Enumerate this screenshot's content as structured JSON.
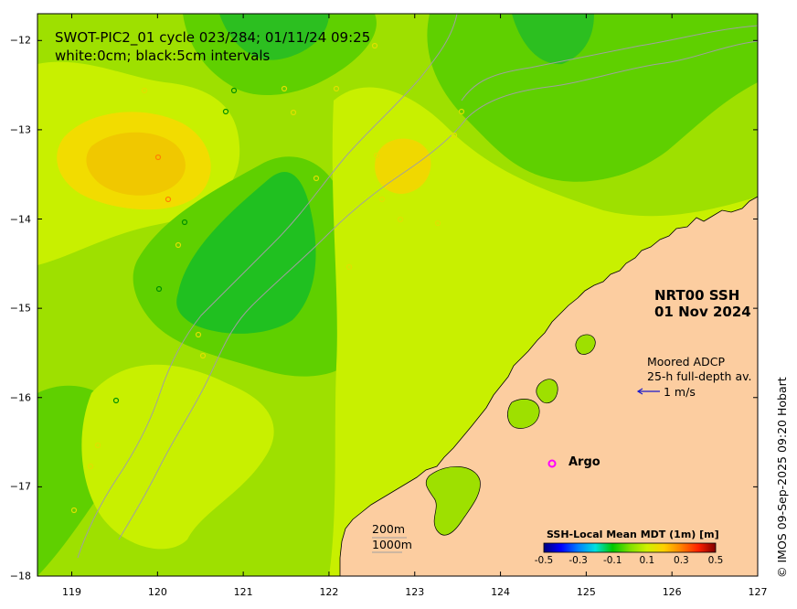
{
  "title": "SWOT-PIC2_01 cycle 023/284; 01/11/24 09:25",
  "subtitle": "white:0cm; black:5cm intervals",
  "product": {
    "name": "NRT00 SSH",
    "date": "01 Nov 2024"
  },
  "adcp": {
    "line1": "Moored ADCP",
    "line2": "25-h full-depth av.",
    "scale_label": "1 m/s",
    "arrow_color": "#1a1acc"
  },
  "argo": {
    "label": "Argo",
    "marker": "o",
    "color": "#ff00ff"
  },
  "isobaths": {
    "label1": "200m",
    "label2": "1000m"
  },
  "colorbar": {
    "title": "SSH-Local Mean MDT (1m) [m]",
    "ticks": [
      "-0.5",
      "-0.3",
      "-0.1",
      "0.1",
      "0.3",
      "0.5"
    ],
    "range": [
      -0.5,
      0.5
    ],
    "colors": [
      "#00007f",
      "#0000ff",
      "#0080ff",
      "#00e0e0",
      "#00c800",
      "#7fe000",
      "#d0f000",
      "#ffd000",
      "#ff8000",
      "#ff2000",
      "#7f0000"
    ]
  },
  "axes": {
    "x_ticks": [
      "119",
      "120",
      "121",
      "122",
      "123",
      "124",
      "125",
      "126",
      "127"
    ],
    "y_ticks": [
      "−12",
      "−13",
      "−14",
      "−15",
      "−16",
      "−17",
      "−18"
    ],
    "lon_range": [
      118.6,
      127.0
    ],
    "lat_range": [
      -18.0,
      -11.7
    ]
  },
  "credit": "© IMOS 09-Sep-2025 09:20 Hobart",
  "colors": {
    "land": "#fccda0",
    "ocean_base": "#9ee000",
    "coastline": "#000000",
    "isobath": "#a0a0a0"
  }
}
